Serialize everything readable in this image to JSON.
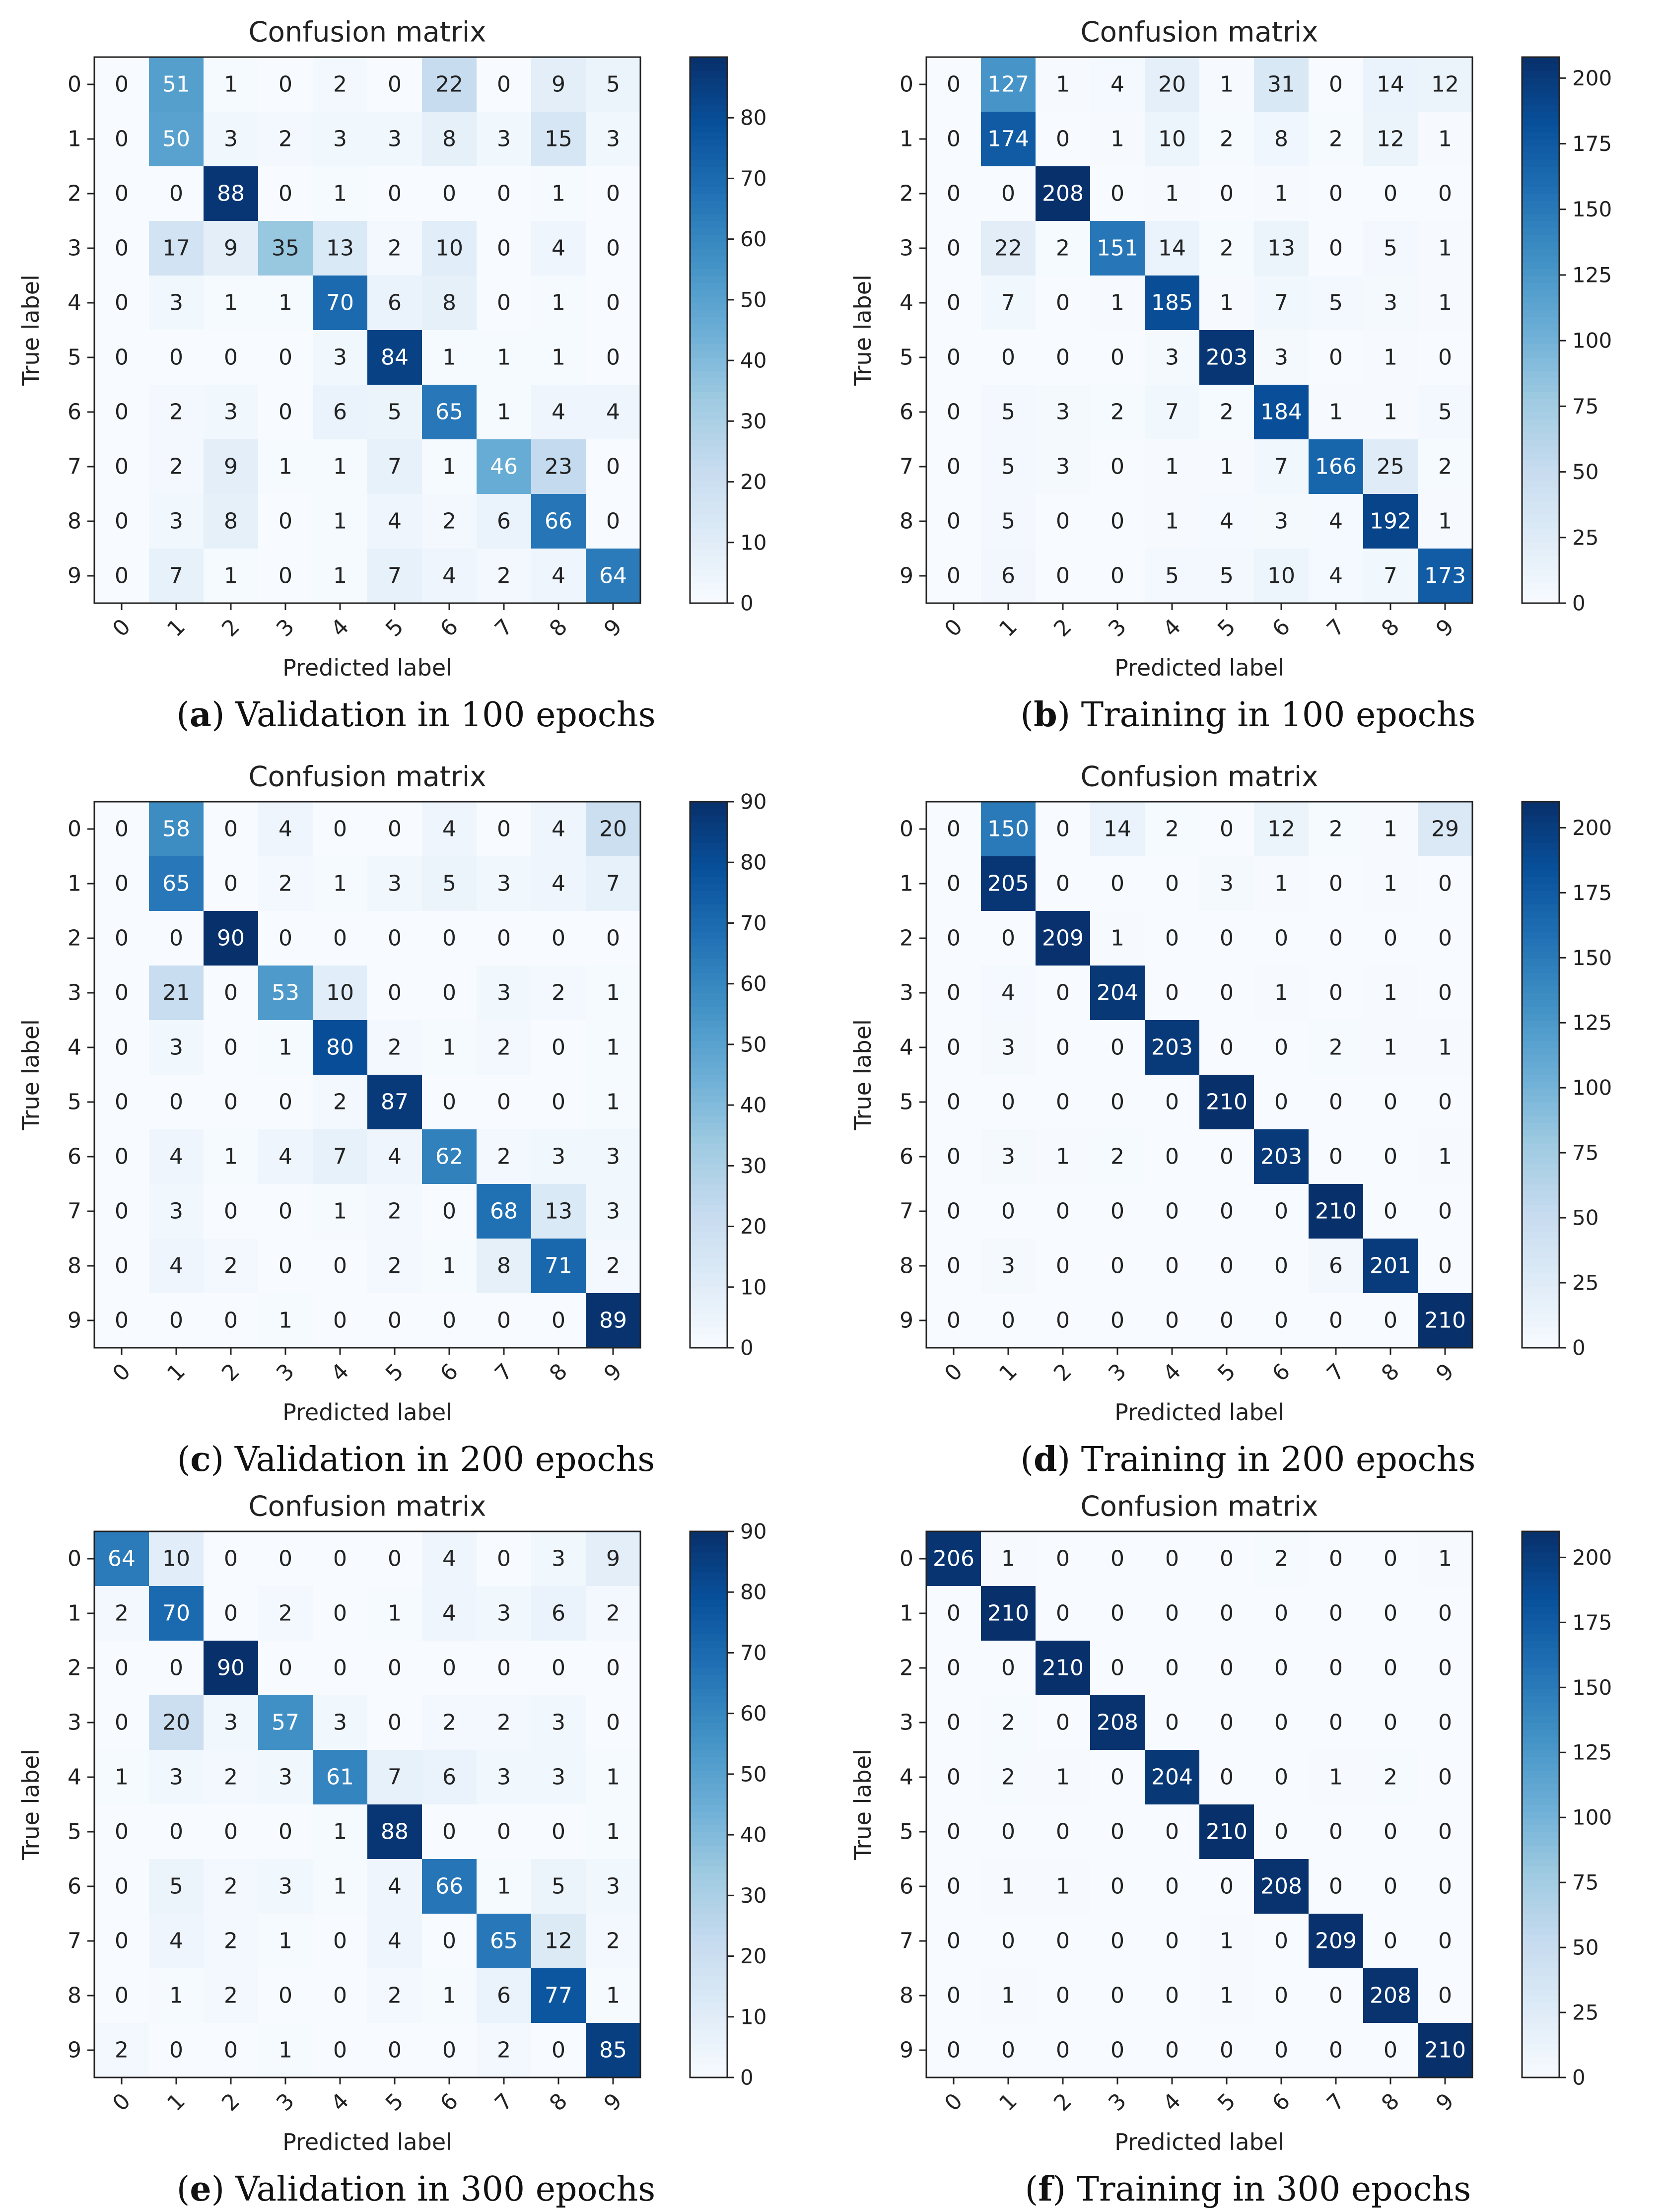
{
  "chart_data": [
    {
      "type": "heatmap",
      "title": "Confusion matrix",
      "xlabel": "Predicted label",
      "ylabel": "True label",
      "labels": [
        "0",
        "1",
        "2",
        "3",
        "4",
        "5",
        "6",
        "7",
        "8",
        "9"
      ],
      "vmax": 90,
      "colorbar_ticks": [
        0,
        10,
        20,
        30,
        40,
        50,
        60,
        70,
        80
      ],
      "matrix": [
        [
          0,
          51,
          1,
          0,
          2,
          0,
          22,
          0,
          9,
          5
        ],
        [
          0,
          50,
          3,
          2,
          3,
          3,
          8,
          3,
          15,
          3
        ],
        [
          0,
          0,
          88,
          0,
          1,
          0,
          0,
          0,
          1,
          0
        ],
        [
          0,
          17,
          9,
          35,
          13,
          2,
          10,
          0,
          4,
          0
        ],
        [
          0,
          3,
          1,
          1,
          70,
          6,
          8,
          0,
          1,
          0
        ],
        [
          0,
          0,
          0,
          0,
          3,
          84,
          1,
          1,
          1,
          0
        ],
        [
          0,
          2,
          3,
          0,
          6,
          5,
          65,
          1,
          4,
          4
        ],
        [
          0,
          2,
          9,
          1,
          1,
          7,
          1,
          46,
          23,
          0
        ],
        [
          0,
          3,
          8,
          0,
          1,
          4,
          2,
          6,
          66,
          0
        ],
        [
          0,
          7,
          1,
          0,
          1,
          7,
          4,
          2,
          4,
          64
        ]
      ],
      "caption_letter": "a",
      "caption_text": "Validation in 100 epochs"
    },
    {
      "type": "heatmap",
      "title": "Confusion matrix",
      "xlabel": "Predicted label",
      "ylabel": "True label",
      "labels": [
        "0",
        "1",
        "2",
        "3",
        "4",
        "5",
        "6",
        "7",
        "8",
        "9"
      ],
      "vmax": 208,
      "colorbar_ticks": [
        0,
        25,
        50,
        75,
        100,
        125,
        150,
        175,
        200
      ],
      "matrix": [
        [
          0,
          127,
          1,
          4,
          20,
          1,
          31,
          0,
          14,
          12
        ],
        [
          0,
          174,
          0,
          1,
          10,
          2,
          8,
          2,
          12,
          1
        ],
        [
          0,
          0,
          208,
          0,
          1,
          0,
          1,
          0,
          0,
          0
        ],
        [
          0,
          22,
          2,
          151,
          14,
          2,
          13,
          0,
          5,
          1
        ],
        [
          0,
          7,
          0,
          1,
          185,
          1,
          7,
          5,
          3,
          1
        ],
        [
          0,
          0,
          0,
          0,
          3,
          203,
          3,
          0,
          1,
          0
        ],
        [
          0,
          5,
          3,
          2,
          7,
          2,
          184,
          1,
          1,
          5
        ],
        [
          0,
          5,
          3,
          0,
          1,
          1,
          7,
          166,
          25,
          2
        ],
        [
          0,
          5,
          0,
          0,
          1,
          4,
          3,
          4,
          192,
          1
        ],
        [
          0,
          6,
          0,
          0,
          5,
          5,
          10,
          4,
          7,
          173
        ]
      ],
      "caption_letter": "b",
      "caption_text": "Training in 100 epochs"
    },
    {
      "type": "heatmap",
      "title": "Confusion matrix",
      "xlabel": "Predicted label",
      "ylabel": "True label",
      "labels": [
        "0",
        "1",
        "2",
        "3",
        "4",
        "5",
        "6",
        "7",
        "8",
        "9"
      ],
      "vmax": 90,
      "colorbar_ticks": [
        0,
        10,
        20,
        30,
        40,
        50,
        60,
        70,
        80,
        90
      ],
      "matrix": [
        [
          0,
          58,
          0,
          4,
          0,
          0,
          4,
          0,
          4,
          20
        ],
        [
          0,
          65,
          0,
          2,
          1,
          3,
          5,
          3,
          4,
          7
        ],
        [
          0,
          0,
          90,
          0,
          0,
          0,
          0,
          0,
          0,
          0
        ],
        [
          0,
          21,
          0,
          53,
          10,
          0,
          0,
          3,
          2,
          1
        ],
        [
          0,
          3,
          0,
          1,
          80,
          2,
          1,
          2,
          0,
          1
        ],
        [
          0,
          0,
          0,
          0,
          2,
          87,
          0,
          0,
          0,
          1
        ],
        [
          0,
          4,
          1,
          4,
          7,
          4,
          62,
          2,
          3,
          3
        ],
        [
          0,
          3,
          0,
          0,
          1,
          2,
          0,
          68,
          13,
          3
        ],
        [
          0,
          4,
          2,
          0,
          0,
          2,
          1,
          8,
          71,
          2
        ],
        [
          0,
          0,
          0,
          1,
          0,
          0,
          0,
          0,
          0,
          89
        ]
      ],
      "caption_letter": "c",
      "caption_text": "Validation in 200 epochs"
    },
    {
      "type": "heatmap",
      "title": "Confusion matrix",
      "xlabel": "Predicted label",
      "ylabel": "True label",
      "labels": [
        "0",
        "1",
        "2",
        "3",
        "4",
        "5",
        "6",
        "7",
        "8",
        "9"
      ],
      "vmax": 210,
      "colorbar_ticks": [
        0,
        25,
        50,
        75,
        100,
        125,
        150,
        175,
        200
      ],
      "matrix": [
        [
          0,
          150,
          0,
          14,
          2,
          0,
          12,
          2,
          1,
          29
        ],
        [
          0,
          205,
          0,
          0,
          0,
          3,
          1,
          0,
          1,
          0
        ],
        [
          0,
          0,
          209,
          1,
          0,
          0,
          0,
          0,
          0,
          0
        ],
        [
          0,
          4,
          0,
          204,
          0,
          0,
          1,
          0,
          1,
          0
        ],
        [
          0,
          3,
          0,
          0,
          203,
          0,
          0,
          2,
          1,
          1
        ],
        [
          0,
          0,
          0,
          0,
          0,
          210,
          0,
          0,
          0,
          0
        ],
        [
          0,
          3,
          1,
          2,
          0,
          0,
          203,
          0,
          0,
          1
        ],
        [
          0,
          0,
          0,
          0,
          0,
          0,
          0,
          210,
          0,
          0
        ],
        [
          0,
          3,
          0,
          0,
          0,
          0,
          0,
          6,
          201,
          0
        ],
        [
          0,
          0,
          0,
          0,
          0,
          0,
          0,
          0,
          0,
          210
        ]
      ],
      "caption_letter": "d",
      "caption_text": "Training in 200 epochs"
    },
    {
      "type": "heatmap",
      "title": "Confusion matrix",
      "xlabel": "Predicted label",
      "ylabel": "True label",
      "labels": [
        "0",
        "1",
        "2",
        "3",
        "4",
        "5",
        "6",
        "7",
        "8",
        "9"
      ],
      "vmax": 90,
      "colorbar_ticks": [
        0,
        10,
        20,
        30,
        40,
        50,
        60,
        70,
        80,
        90
      ],
      "matrix": [
        [
          64,
          10,
          0,
          0,
          0,
          0,
          4,
          0,
          3,
          9
        ],
        [
          2,
          70,
          0,
          2,
          0,
          1,
          4,
          3,
          6,
          2
        ],
        [
          0,
          0,
          90,
          0,
          0,
          0,
          0,
          0,
          0,
          0
        ],
        [
          0,
          20,
          3,
          57,
          3,
          0,
          2,
          2,
          3,
          0
        ],
        [
          1,
          3,
          2,
          3,
          61,
          7,
          6,
          3,
          3,
          1
        ],
        [
          0,
          0,
          0,
          0,
          1,
          88,
          0,
          0,
          0,
          1
        ],
        [
          0,
          5,
          2,
          3,
          1,
          4,
          66,
          1,
          5,
          3
        ],
        [
          0,
          4,
          2,
          1,
          0,
          4,
          0,
          65,
          12,
          2
        ],
        [
          0,
          1,
          2,
          0,
          0,
          2,
          1,
          6,
          77,
          1
        ],
        [
          2,
          0,
          0,
          1,
          0,
          0,
          0,
          2,
          0,
          85
        ]
      ],
      "caption_letter": "e",
      "caption_text": "Validation in 300 epochs"
    },
    {
      "type": "heatmap",
      "title": "Confusion matrix",
      "xlabel": "Predicted label",
      "ylabel": "True label",
      "labels": [
        "0",
        "1",
        "2",
        "3",
        "4",
        "5",
        "6",
        "7",
        "8",
        "9"
      ],
      "vmax": 210,
      "colorbar_ticks": [
        0,
        25,
        50,
        75,
        100,
        125,
        150,
        175,
        200
      ],
      "matrix": [
        [
          206,
          1,
          0,
          0,
          0,
          0,
          2,
          0,
          0,
          1
        ],
        [
          0,
          210,
          0,
          0,
          0,
          0,
          0,
          0,
          0,
          0
        ],
        [
          0,
          0,
          210,
          0,
          0,
          0,
          0,
          0,
          0,
          0
        ],
        [
          0,
          2,
          0,
          208,
          0,
          0,
          0,
          0,
          0,
          0
        ],
        [
          0,
          2,
          1,
          0,
          204,
          0,
          0,
          1,
          2,
          0
        ],
        [
          0,
          0,
          0,
          0,
          0,
          210,
          0,
          0,
          0,
          0
        ],
        [
          0,
          1,
          1,
          0,
          0,
          0,
          208,
          0,
          0,
          0
        ],
        [
          0,
          0,
          0,
          0,
          0,
          1,
          0,
          209,
          0,
          0
        ],
        [
          0,
          1,
          0,
          0,
          0,
          1,
          0,
          0,
          208,
          0
        ],
        [
          0,
          0,
          0,
          0,
          0,
          0,
          0,
          0,
          0,
          210
        ]
      ],
      "caption_letter": "f",
      "caption_text": "Training in 300 epochs"
    }
  ]
}
